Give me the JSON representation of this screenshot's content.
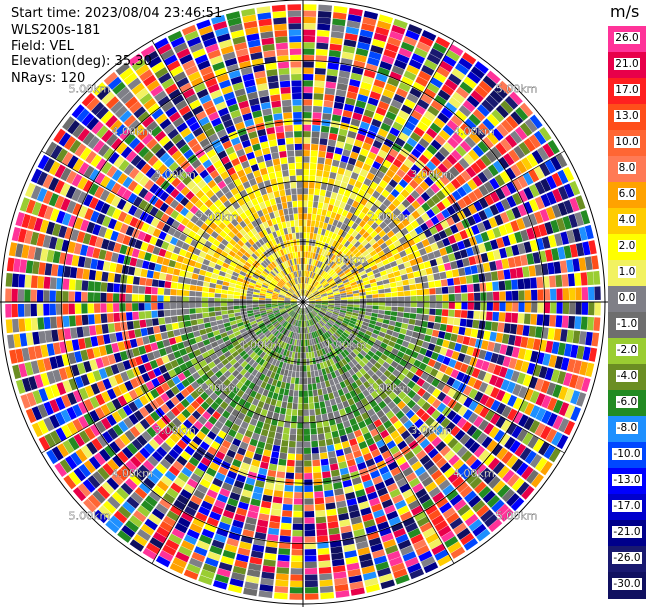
{
  "header": {
    "start_time": "Start time: 2023/08/04 23:46:51",
    "instrument": "WLS200s-181",
    "field": "Field: VEL",
    "elevation": "Elevation(deg): 35.30",
    "nrays": "NRays: 120"
  },
  "colorbar": {
    "unit": "m/s",
    "bins": [
      {
        "label": "26.0",
        "color": "#ff3399"
      },
      {
        "label": "21.0",
        "color": "#e8004a"
      },
      {
        "label": "17.0",
        "color": "#ff2020"
      },
      {
        "label": "13.0",
        "color": "#ff4e1a"
      },
      {
        "label": "10.0",
        "color": "#ff6633"
      },
      {
        "label": "8.0",
        "color": "#ff7a55"
      },
      {
        "label": "6.0",
        "color": "#ffa200"
      },
      {
        "label": "4.0",
        "color": "#ffcc00"
      },
      {
        "label": "2.0",
        "color": "#ffff00"
      },
      {
        "label": "1.0",
        "color": "#f2f261"
      },
      {
        "label": "0.0",
        "color": "#7f7f87"
      },
      {
        "label": "-1.0",
        "color": "#6e6e6e"
      },
      {
        "label": "-2.0",
        "color": "#9acd32"
      },
      {
        "label": "-4.0",
        "color": "#6b8e23"
      },
      {
        "label": "-6.0",
        "color": "#228b22"
      },
      {
        "label": "-8.0",
        "color": "#1e90ff"
      },
      {
        "label": "-10.0",
        "color": "#0047ff"
      },
      {
        "label": "-13.0",
        "color": "#0000ff"
      },
      {
        "label": "-17.0",
        "color": "#0000cd"
      },
      {
        "label": "-21.0",
        "color": "#00008b"
      },
      {
        "label": "-26.0",
        "color": "#191970"
      },
      {
        "label": "-30.0",
        "color": "#101060"
      }
    ]
  },
  "chart_data": {
    "type": "heatmap",
    "projection": "polar-ppi",
    "field": "VEL",
    "unit": "m/s",
    "nrays": 120,
    "range_rings": [
      "1.00km",
      "2.00km",
      "3.00km",
      "4.00km",
      "5.00km"
    ],
    "range_ring_labels": {
      "upper_left": [
        "2.00km",
        "3.00km",
        "4.00km",
        "5.00km"
      ],
      "upper_right": [
        "1.00km",
        "2.00km",
        "3.00km",
        "4.00km",
        "5.00km"
      ],
      "lower_left": [
        "1.00km",
        "2.00km",
        "3.00km",
        "4.00km",
        "5.00km"
      ],
      "lower_right": [
        "1.00km",
        "2.00km",
        "3.00km",
        "4.00km",
        "5.00km"
      ]
    },
    "spokes_deg": [
      0,
      30,
      60,
      90,
      120,
      150,
      180,
      210,
      240,
      270,
      300,
      330
    ],
    "max_range_km": 5.0,
    "pattern": {
      "coherent_range_km": 2.2,
      "north_half": "positive 1-6 m/s (yellow/orange)",
      "south_half": "negative 1-6 m/s (green/olive)",
      "beyond_coherent": "noise spanning full colour scale"
    }
  }
}
